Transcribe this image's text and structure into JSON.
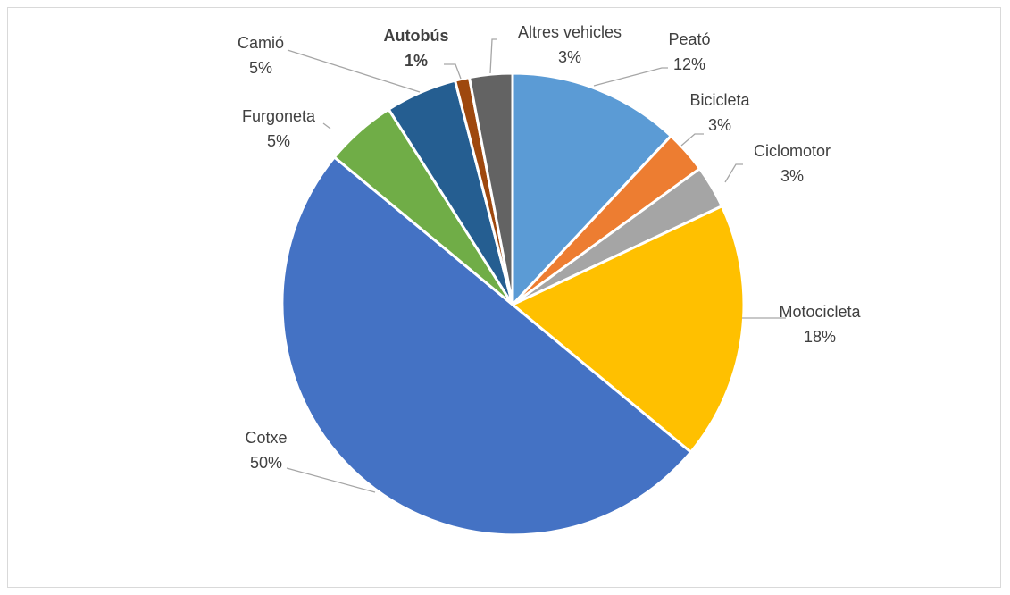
{
  "chart_data": {
    "type": "pie",
    "title": "",
    "slices": [
      {
        "label": "Peató",
        "value": 12,
        "value_label": "12%",
        "color": "#5b9bd5",
        "bold": false
      },
      {
        "label": "Bicicleta",
        "value": 3,
        "value_label": "3%",
        "color": "#ed7d31",
        "bold": false
      },
      {
        "label": "Ciclomotor",
        "value": 3,
        "value_label": "3%",
        "color": "#a5a5a5",
        "bold": false
      },
      {
        "label": "Motocicleta",
        "value": 18,
        "value_label": "18%",
        "color": "#ffc000",
        "bold": false
      },
      {
        "label": "Cotxe",
        "value": 50,
        "value_label": "50%",
        "color": "#4472c4",
        "bold": false
      },
      {
        "label": "Furgoneta",
        "value": 5,
        "value_label": "5%",
        "color": "#70ad47",
        "bold": false
      },
      {
        "label": "Camió",
        "value": 5,
        "value_label": "5%",
        "color": "#255e91",
        "bold": false
      },
      {
        "label": "Autobús",
        "value": 1,
        "value_label": "1%",
        "color": "#9e480e",
        "bold": true
      },
      {
        "label": "Altres vehicles",
        "value": 3,
        "value_label": "3%",
        "color": "#636363",
        "bold": false
      }
    ]
  }
}
